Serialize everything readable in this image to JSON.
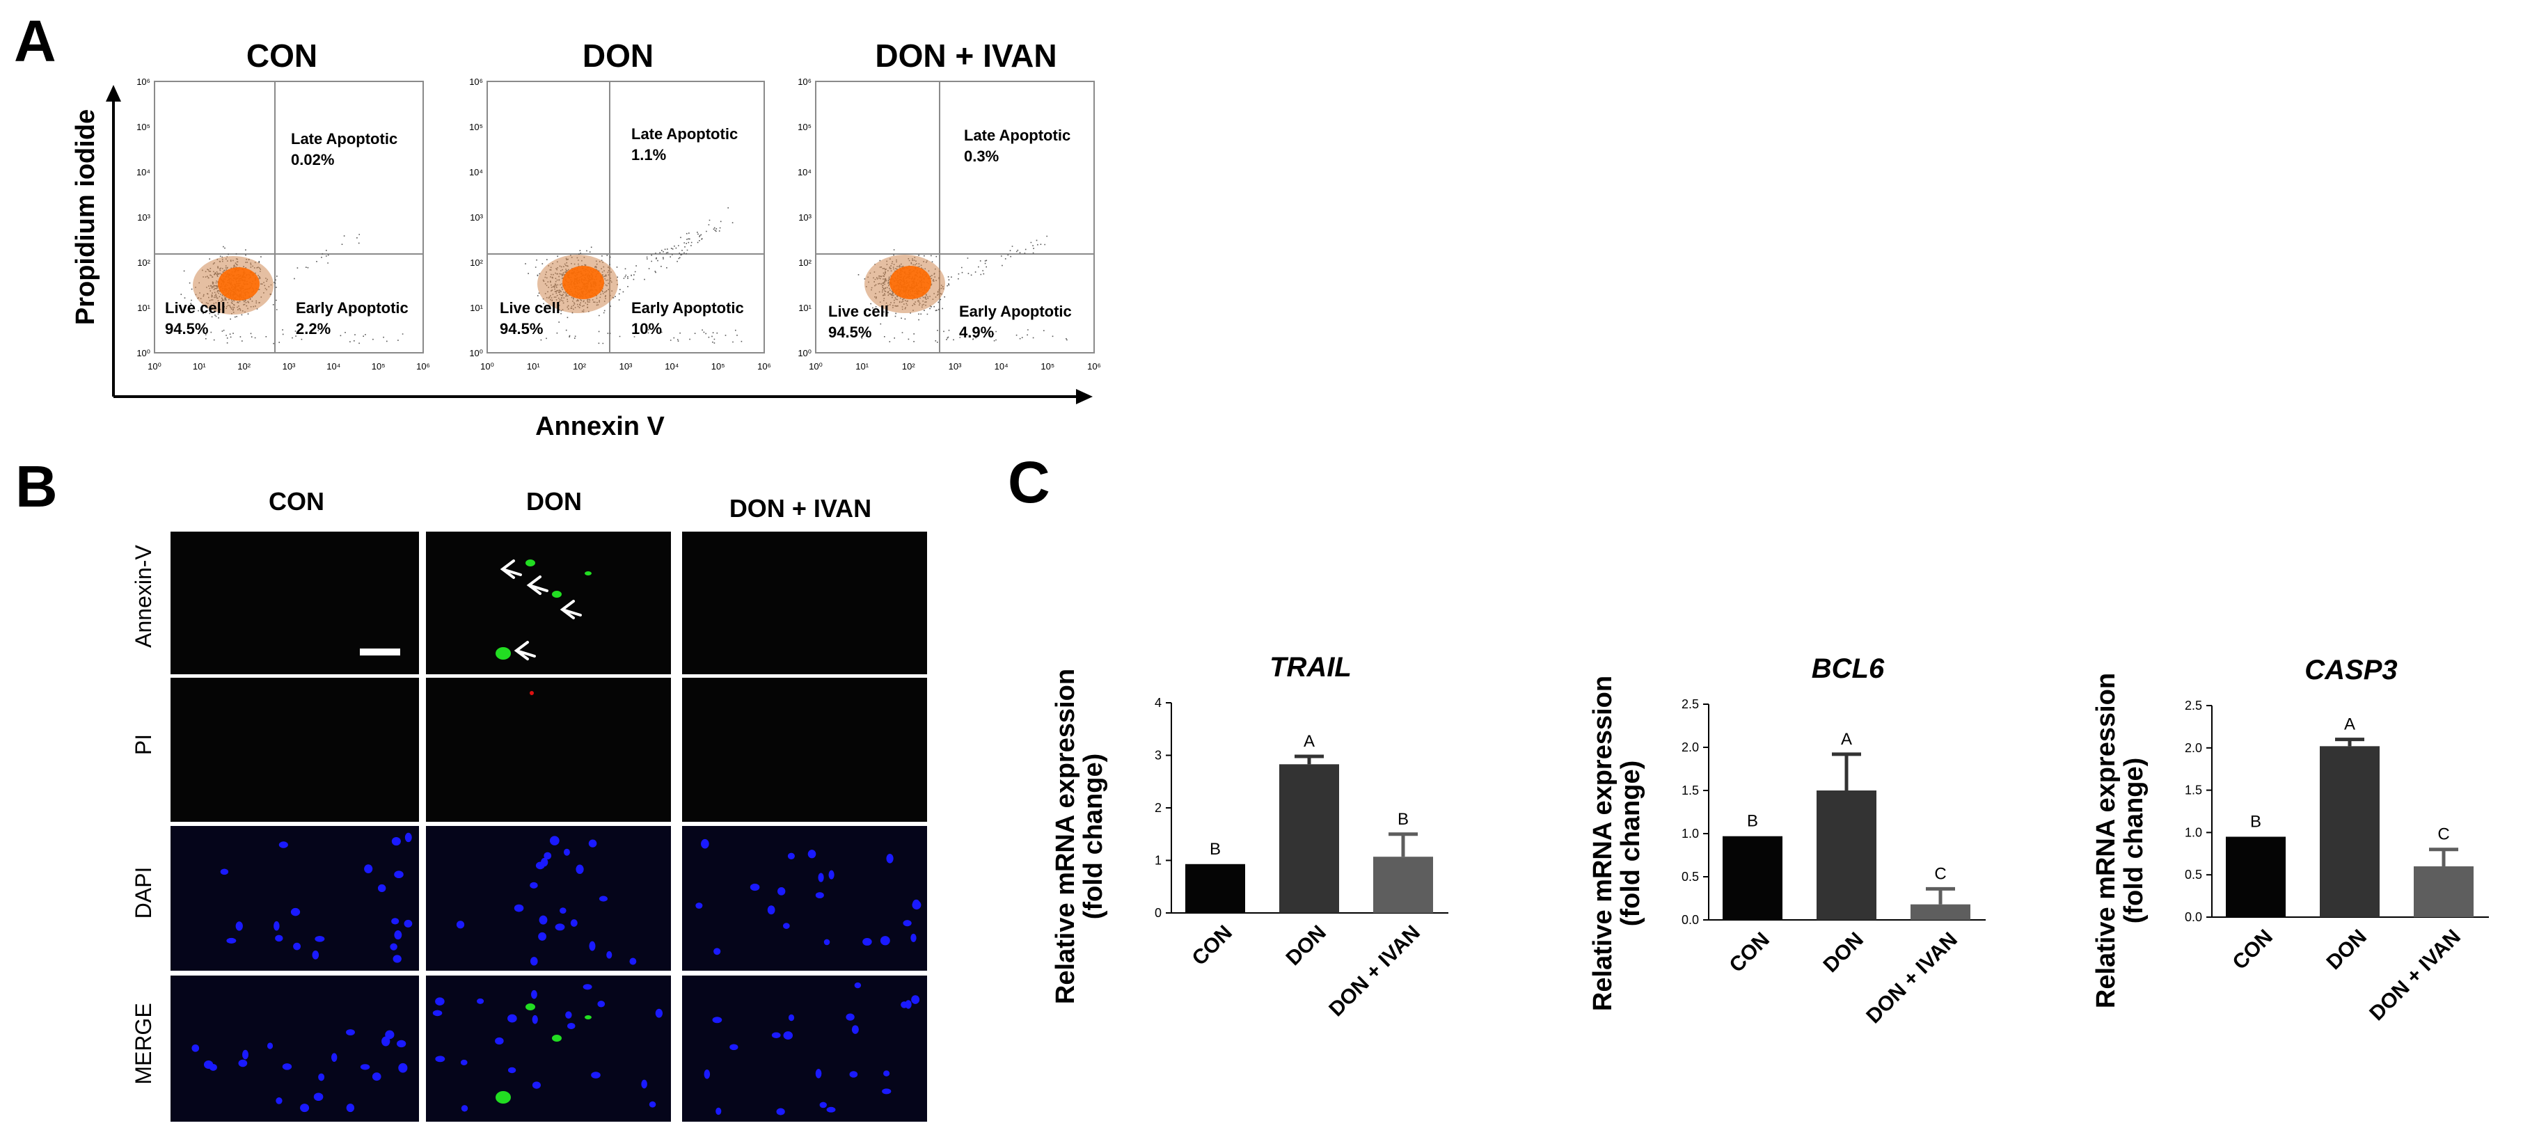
{
  "panel_labels": {
    "a": "A",
    "b": "B",
    "c": "C"
  },
  "panel_a": {
    "xlabel": "Annexin V",
    "ylabel": "Propidium iodide",
    "tick_labels": [
      "10⁰",
      "10¹",
      "10²",
      "10³",
      "10⁴",
      "10⁵",
      "10⁶"
    ],
    "y_tick_labels": [
      "10⁶",
      "10⁵",
      "10⁴",
      "10³",
      "10²",
      "10¹",
      "10⁰"
    ],
    "plots": [
      {
        "title": "CON",
        "late": {
          "name": "Late Apoptotic",
          "value": "0.02%"
        },
        "live": {
          "name": "Live cell",
          "value": "94.5%"
        },
        "early": {
          "name": "Early Apoptotic",
          "value": "2.2%"
        }
      },
      {
        "title": "DON",
        "late": {
          "name": "Late Apoptotic",
          "value": "1.1%"
        },
        "live": {
          "name": "Live cell",
          "value": "94.5%"
        },
        "early": {
          "name": "Early Apoptotic",
          "value": "10%"
        }
      },
      {
        "title": "DON + IVAN",
        "late": {
          "name": "Late Apoptotic",
          "value": "0.3%"
        },
        "live": {
          "name": "Live cell",
          "value": "94.5%"
        },
        "early": {
          "name": "Early Apoptotic",
          "value": "4.9%"
        }
      }
    ]
  },
  "panel_b": {
    "columns": [
      "CON",
      "DON",
      "DON + IVAN"
    ],
    "rows": [
      "Annexin-V",
      "PI",
      "DAPI",
      "MERGE"
    ]
  },
  "colors": {
    "bar_con": "#050505",
    "bar_don": "#333333",
    "bar_don_ivan": "#5e5e5e",
    "dapi": "#1a1aff",
    "annexin": "#22dd22",
    "pi": "#dd1111",
    "dot_core": "#ff6a00",
    "dot_mid": "#d08a55",
    "dot_outer": "#555555"
  },
  "chart_data": [
    {
      "type": "bar",
      "title": "TRAIL",
      "categories": [
        "CON",
        "DON",
        "DON + IVAN"
      ],
      "values": [
        0.93,
        2.83,
        1.07
      ],
      "errors": [
        0,
        0.15,
        0.43
      ],
      "letters": [
        "B",
        "A",
        "B"
      ],
      "ylabel": "Relative mRNA expression\n(fold change)",
      "ylabel_line1": "Relative mRNA expression",
      "ylabel_line2": "(fold change)",
      "ylim": [
        0,
        4
      ],
      "yticks": [
        0,
        1,
        2,
        3,
        4
      ],
      "ytick_labels": [
        "0",
        "1",
        "2",
        "3",
        "4"
      ]
    },
    {
      "type": "bar",
      "title": "BCL6",
      "categories": [
        "CON",
        "DON",
        "DON + IVAN"
      ],
      "values": [
        0.97,
        1.5,
        0.18
      ],
      "errors": [
        0,
        0.42,
        0.18
      ],
      "letters": [
        "B",
        "A",
        "C"
      ],
      "ylabel": "Relative mRNA expression\n(fold change)",
      "ylabel_line1": "Relative mRNA expression",
      "ylabel_line2": "(fold change)",
      "ylim": [
        0,
        2.5
      ],
      "yticks": [
        0,
        0.5,
        1.0,
        1.5,
        2.0,
        2.5
      ],
      "ytick_labels": [
        "0.0",
        "0.5",
        "1.0",
        "1.5",
        "2.0",
        "2.5"
      ]
    },
    {
      "type": "bar",
      "title": "CASP3",
      "categories": [
        "CON",
        "DON",
        "DON + IVAN"
      ],
      "values": [
        0.95,
        2.02,
        0.6
      ],
      "errors": [
        0,
        0.08,
        0.2
      ],
      "letters": [
        "B",
        "A",
        "C"
      ],
      "ylabel": "Relative mRNA expression\n(fold change)",
      "ylabel_line1": "Relative mRNA expression",
      "ylabel_line2": "(fold change)",
      "ylim": [
        0,
        2.5
      ],
      "yticks": [
        0,
        0.5,
        1.0,
        1.5,
        2.0,
        2.5
      ],
      "ytick_labels": [
        "0.0",
        "0.5",
        "1.0",
        "1.5",
        "2.0",
        "2.5"
      ]
    }
  ]
}
